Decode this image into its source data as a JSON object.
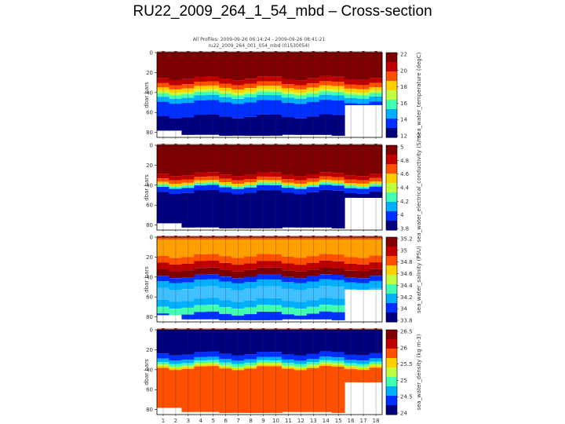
{
  "page": {
    "title": "RU22_2009_264_1_54_mbd – Cross-section"
  },
  "figure": {
    "header_line1": "All Profiles: 2009-09-26 06:14:24 - 2009-09-26 08:41:21",
    "header_line2": "ru22_2009_264_001_054_mbd (01530054)"
  },
  "chart_data": [
    {
      "type": "heatmap",
      "title": "",
      "ylabel": "dbar bars",
      "ylim": [
        0,
        85
      ],
      "y_ticks": [
        "0",
        "20",
        "40",
        "60",
        "80"
      ],
      "x_ticks": [
        "1",
        "2",
        "3",
        "4",
        "5",
        "6",
        "7",
        "8",
        "9",
        "10",
        "11",
        "12",
        "13",
        "14",
        "15",
        "16",
        "17",
        "18"
      ],
      "colorbar_label": "sea_water_temperature (degC)",
      "colorbar_range": [
        11,
        22
      ],
      "colorbar_ticks": [
        "22",
        "20",
        "18",
        "16",
        "14",
        "12"
      ],
      "colors": [
        "#00007f",
        "#0030ff",
        "#00b0ff",
        "#40ffb0",
        "#c0ff40",
        "#ffd000",
        "#ff5000",
        "#c00000",
        "#7f0000"
      ]
    },
    {
      "type": "heatmap",
      "title": "",
      "ylabel": "dbar bars",
      "ylim": [
        0,
        85
      ],
      "y_ticks": [
        "0",
        "20",
        "40",
        "60",
        "80"
      ],
      "x_ticks": [
        "1",
        "2",
        "3",
        "4",
        "5",
        "6",
        "7",
        "8",
        "9",
        "10",
        "11",
        "12",
        "13",
        "14",
        "15",
        "16",
        "17",
        "18"
      ],
      "colorbar_label": "sea_water_electrical_conductivity (S/m)",
      "colorbar_range": [
        3.8,
        5.0
      ],
      "colorbar_ticks": [
        "5",
        "4.8",
        "4.6",
        "4.4",
        "4.2",
        "4",
        "3.8"
      ],
      "colors": [
        "#00007f",
        "#0030ff",
        "#00b0ff",
        "#40ffb0",
        "#c0ff40",
        "#ffd000",
        "#ff5000",
        "#c00000",
        "#7f0000"
      ]
    },
    {
      "type": "heatmap",
      "title": "",
      "ylabel": "dbar bars",
      "ylim": [
        0,
        85
      ],
      "y_ticks": [
        "0",
        "20",
        "40",
        "60",
        "80"
      ],
      "x_ticks": [
        "1",
        "2",
        "3",
        "4",
        "5",
        "6",
        "7",
        "8",
        "9",
        "10",
        "11",
        "12",
        "13",
        "14",
        "15",
        "16",
        "17",
        "18"
      ],
      "colorbar_label": "sea_water_salinity (PSU)",
      "colorbar_range": [
        33.8,
        35.2
      ],
      "colorbar_ticks": [
        "35.2",
        "35",
        "34.8",
        "34.6",
        "34.4",
        "34.2",
        "34",
        "33.8"
      ],
      "colors": [
        "#00007f",
        "#0030ff",
        "#00b0ff",
        "#40ffb0",
        "#c0ff40",
        "#ffd000",
        "#ff5000",
        "#c00000",
        "#7f0000"
      ]
    },
    {
      "type": "heatmap",
      "title": "",
      "ylabel": "dbar bars",
      "ylim": [
        0,
        85
      ],
      "y_ticks": [
        "0",
        "20",
        "40",
        "60",
        "80"
      ],
      "x_ticks": [
        "1",
        "2",
        "3",
        "4",
        "5",
        "6",
        "7",
        "8",
        "9",
        "10",
        "11",
        "12",
        "13",
        "14",
        "15",
        "16",
        "17",
        "18"
      ],
      "colorbar_label": "sea_water_density (kg m-3)",
      "colorbar_range": [
        23.8,
        26.5
      ],
      "colorbar_ticks": [
        "26.5",
        "26",
        "25.5",
        "25",
        "24.5",
        "24"
      ],
      "colors": [
        "#00007f",
        "#0030ff",
        "#00b0ff",
        "#40ffb0",
        "#c0ff40",
        "#ffd000",
        "#ff5000",
        "#c00000",
        "#7f0000"
      ]
    }
  ]
}
